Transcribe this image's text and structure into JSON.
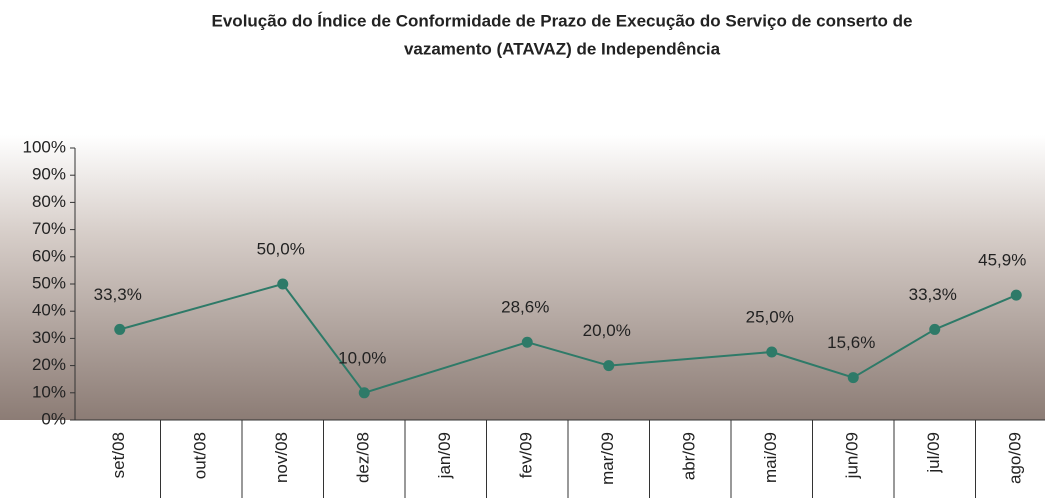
{
  "chart_data": {
    "type": "line",
    "title": [
      "Evolução do Índice de Conformidade de Prazo de Execução do Serviço de conserto de",
      "vazamento (ATAVAZ) de Independência"
    ],
    "categories": [
      "set/08",
      "out/08",
      "nov/08",
      "dez/08",
      "jan/09",
      "fev/09",
      "mar/09",
      "abr/09",
      "mai/09",
      "jun/09",
      "jul/09",
      "ago/09"
    ],
    "series": [
      {
        "name": "ATAVAZ",
        "color": "#2e7a68",
        "values": [
          33.3,
          null,
          50.0,
          10.0,
          null,
          28.6,
          20.0,
          null,
          25.0,
          15.6,
          33.3,
          45.9
        ],
        "value_labels": [
          "33,3%",
          null,
          "50,0%",
          "10,0%",
          null,
          "28,6%",
          "20,0%",
          null,
          "25,0%",
          "15,6%",
          "33,3%",
          "45,9%"
        ]
      }
    ],
    "span_gaps": true,
    "ylim": [
      0,
      100
    ],
    "yticks": [
      {
        "value": 0,
        "label": "0%"
      },
      {
        "value": 10,
        "label": "10%"
      },
      {
        "value": 20,
        "label": "20%"
      },
      {
        "value": 30,
        "label": "30%"
      },
      {
        "value": 40,
        "label": "40%"
      },
      {
        "value": 50,
        "label": "50%"
      },
      {
        "value": 60,
        "label": "60%"
      },
      {
        "value": 70,
        "label": "70%"
      },
      {
        "value": 80,
        "label": "80%"
      },
      {
        "value": 90,
        "label": "90%"
      },
      {
        "value": 100,
        "label": "100%"
      }
    ]
  }
}
